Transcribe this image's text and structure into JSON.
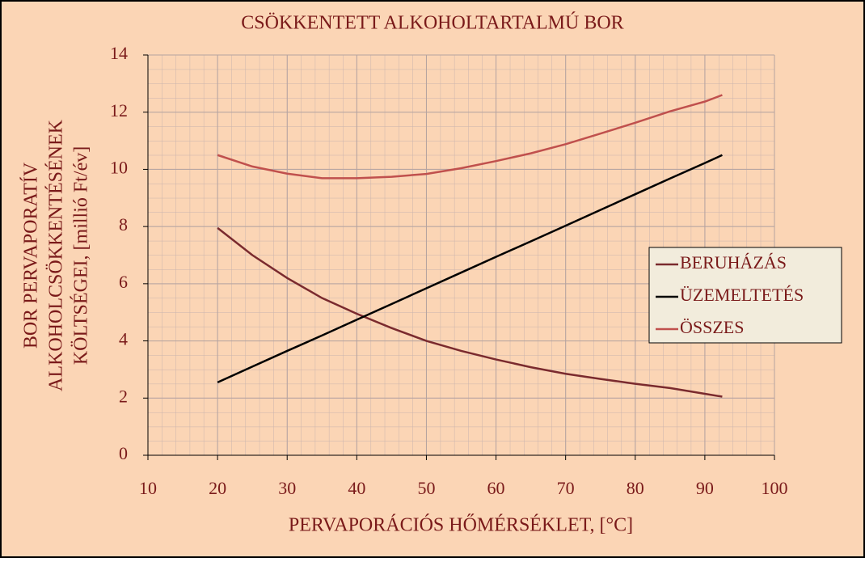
{
  "chart_data": {
    "type": "line",
    "title": "CSÖKKENTETT ALKOHOLTARTALMÚ BOR",
    "x_label": "PERVAPORÁCIÓS HŐMÉRSÉKLET, [°C]",
    "y_label": [
      "BOR PERVAPORATÍV",
      "ALKOHOLCSÖKKENTÉSÉNEK",
      "KÖLTSÉGEI, [millió Ft/év]"
    ],
    "x": [
      20,
      25,
      30,
      35,
      40,
      45,
      50,
      55,
      60,
      65,
      70,
      75,
      80,
      85,
      90,
      92.5
    ],
    "series": [
      {
        "name": "BERUHÁZÁS",
        "color": "#7a2a2e",
        "values": [
          7.95,
          7.0,
          6.2,
          5.5,
          4.95,
          4.45,
          4.0,
          3.65,
          3.35,
          3.08,
          2.85,
          2.67,
          2.5,
          2.35,
          2.15,
          2.05
        ]
      },
      {
        "name": "ÜZEMELTETÉS",
        "color": "#000000",
        "values": [
          2.55,
          3.1,
          3.65,
          4.19,
          4.74,
          5.29,
          5.84,
          6.39,
          6.94,
          7.48,
          8.03,
          8.58,
          9.13,
          9.68,
          10.22,
          10.5
        ]
      },
      {
        "name": "ÖSSZES",
        "color": "#c0504d",
        "values": [
          10.5,
          10.1,
          9.85,
          9.69,
          9.69,
          9.74,
          9.84,
          10.04,
          10.29,
          10.56,
          10.88,
          11.25,
          11.63,
          12.03,
          12.37,
          12.6
        ]
      }
    ],
    "xlim": [
      10,
      100
    ],
    "xticks": [
      10,
      20,
      30,
      40,
      50,
      60,
      70,
      80,
      90,
      100
    ],
    "ylim": [
      0,
      14
    ],
    "yticks": [
      0,
      2,
      4,
      6,
      8,
      10,
      12,
      14
    ],
    "grid": true,
    "legend": "right"
  }
}
